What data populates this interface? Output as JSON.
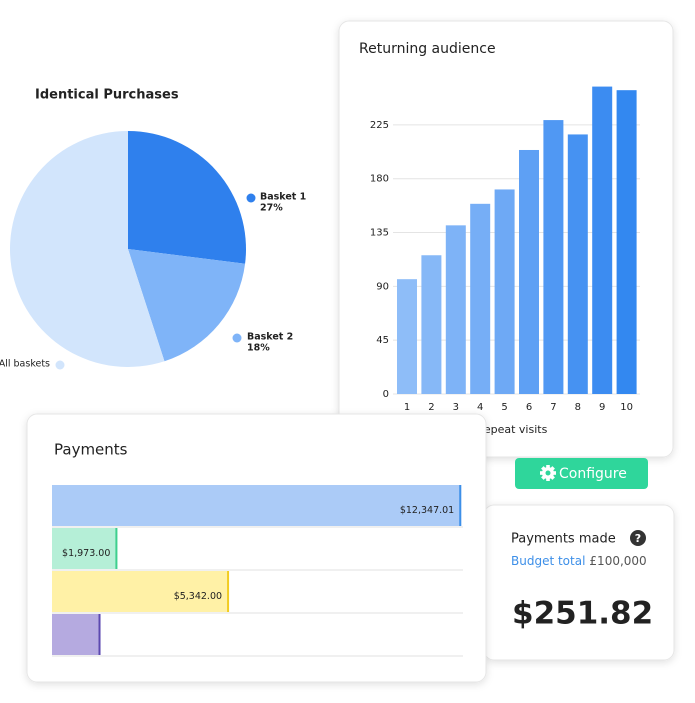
{
  "chart_data": [
    {
      "type": "pie",
      "title": "Identical Purchases",
      "categories": [
        "Basket 1",
        "Basket 2",
        "All baskets"
      ],
      "values": [
        27,
        18,
        55
      ],
      "value_labels": [
        "27%",
        "18%",
        null
      ],
      "colors": [
        "#2f80ed",
        "#7fb4f8",
        "#d2e5fc"
      ]
    },
    {
      "type": "bar",
      "title": "Returning audience",
      "x_label": "Repeat visits",
      "categories": [
        "1",
        "2",
        "3",
        "4",
        "5",
        "6",
        "7",
        "8",
        "9",
        "10"
      ],
      "values": [
        96,
        116,
        141,
        159,
        171,
        204,
        229,
        217,
        257,
        254
      ],
      "colors": [
        "#8ebdf8",
        "#86b8f7",
        "#7eb3f7",
        "#76aef6",
        "#6ea9f5",
        "#5ea0f4",
        "#5098f3",
        "#4692f2",
        "#3c8cf1",
        "#3388f0"
      ],
      "ylim": [
        0,
        260
      ],
      "yticks": [
        0,
        45,
        90,
        135,
        180,
        225
      ],
      "grid": true
    },
    {
      "type": "hbar",
      "title": "Payments",
      "values": [
        12347.01,
        1973.0,
        5342.0,
        1463.79
      ],
      "value_labels": [
        "$12,347.01",
        "$1,973.00",
        "$5,342.00",
        null
      ],
      "colors": [
        "#abcbf7",
        "#b5efd7",
        "#fff1a6",
        "#b5aae0"
      ],
      "border_colors": [
        "#3d8fe8",
        "#3ecf8e",
        "#f2cc21",
        "#5b49b0"
      ],
      "xlim": [
        0,
        12400
      ]
    }
  ],
  "configure_button": {
    "label": "Configure"
  },
  "payments_made": {
    "title": "Payments made",
    "help_icon": "?",
    "budget_label": "Budget total",
    "budget_value": "£100,000",
    "amount": "$251.82"
  }
}
